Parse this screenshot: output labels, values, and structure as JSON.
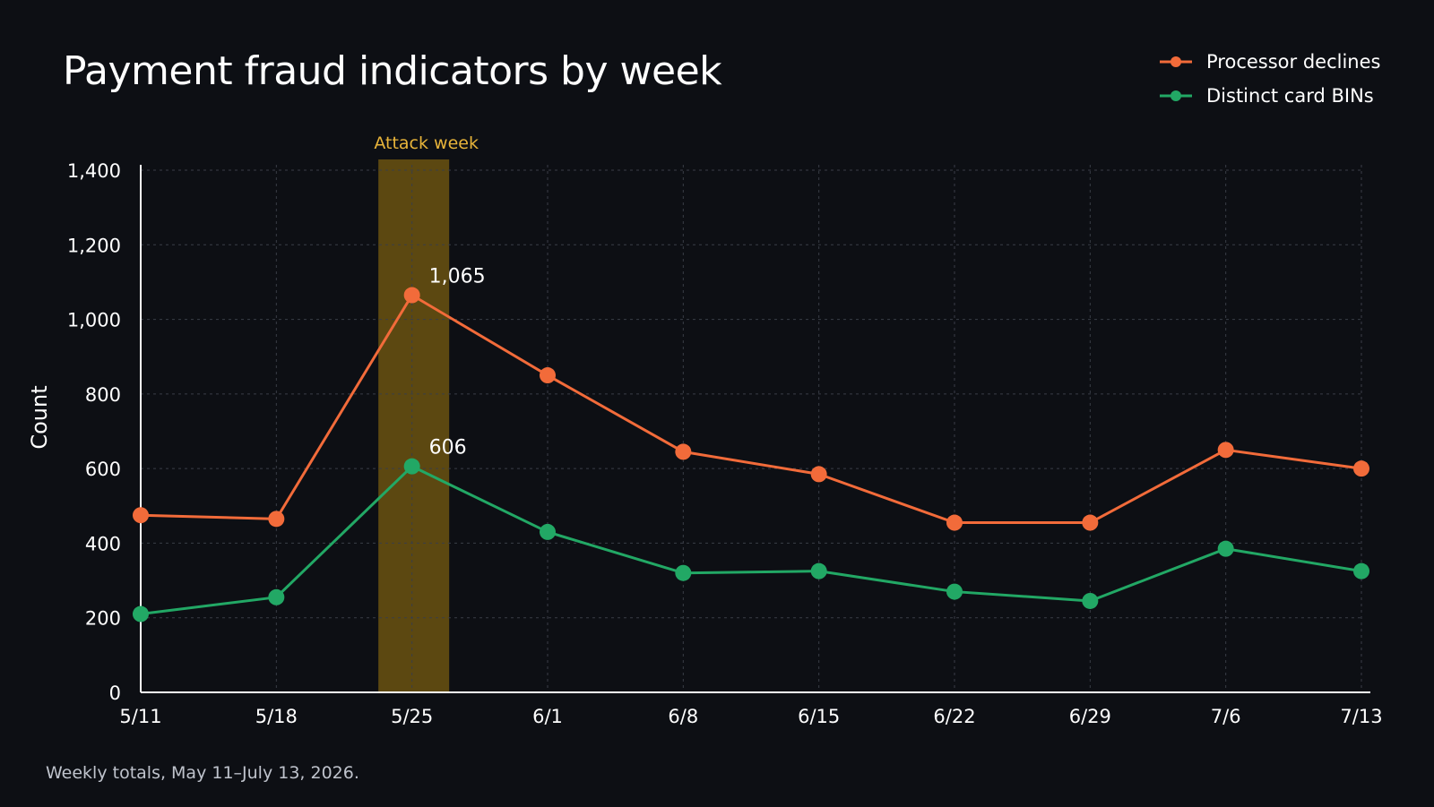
{
  "chart_data": {
    "type": "line",
    "title": "Payment fraud indicators by week",
    "ylabel": "Count",
    "xlabel": "",
    "categories": [
      "5/11",
      "5/18",
      "5/25",
      "6/1",
      "6/8",
      "6/15",
      "6/22",
      "6/29",
      "7/6",
      "7/13"
    ],
    "ylim": [
      0,
      1400
    ],
    "yticks": [
      0,
      200,
      400,
      600,
      800,
      1000,
      1200,
      1400
    ],
    "ytick_labels": [
      "0",
      "200",
      "400",
      "600",
      "800",
      "1,000",
      "1,200",
      "1,400"
    ],
    "grid": true,
    "legend_position": "top-right",
    "series": [
      {
        "name": "Processor declines",
        "color": "#f26b3a",
        "values": [
          475,
          465,
          1065,
          850,
          645,
          585,
          455,
          455,
          650,
          600
        ]
      },
      {
        "name": "Distinct card BINs",
        "color": "#22a865",
        "values": [
          210,
          255,
          606,
          430,
          320,
          325,
          270,
          245,
          385,
          325
        ]
      }
    ],
    "annotations": [
      {
        "category": "5/25",
        "series": 0,
        "text": "1,065"
      },
      {
        "category": "5/25",
        "series": 1,
        "text": "606"
      }
    ],
    "highlight_band": {
      "category": "5/25",
      "label": "Attack week",
      "color": "#6b5210"
    },
    "footnote": "Weekly totals, May 11–July 13, 2026."
  }
}
